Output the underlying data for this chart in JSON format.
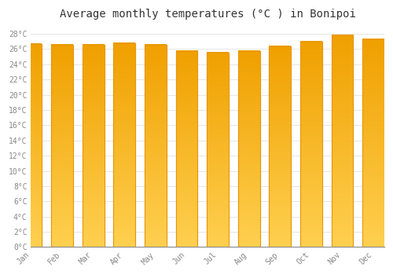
{
  "months": [
    "Jan",
    "Feb",
    "Mar",
    "Apr",
    "May",
    "Jun",
    "Jul",
    "Aug",
    "Sep",
    "Oct",
    "Nov",
    "Dec"
  ],
  "values": [
    26.7,
    26.5,
    26.5,
    26.8,
    26.5,
    25.7,
    25.5,
    25.7,
    26.3,
    27.0,
    27.8,
    27.3
  ],
  "bar_color_main": "#FFC125",
  "bar_color_edge": "#E8960A",
  "bar_gradient_top": "#FFD050",
  "bar_gradient_bottom": "#F0A000",
  "background_color": "#FFFFFF",
  "plot_bg_color": "#FFFFFF",
  "grid_color": "#E0E0E0",
  "title": "Average monthly temperatures (°C ) in Bonipoi",
  "title_fontsize": 10,
  "tick_label_color": "#888888",
  "tick_label_fontsize": 7,
  "ylim": [
    0,
    29
  ],
  "ytick_step": 2,
  "bar_width": 0.7
}
